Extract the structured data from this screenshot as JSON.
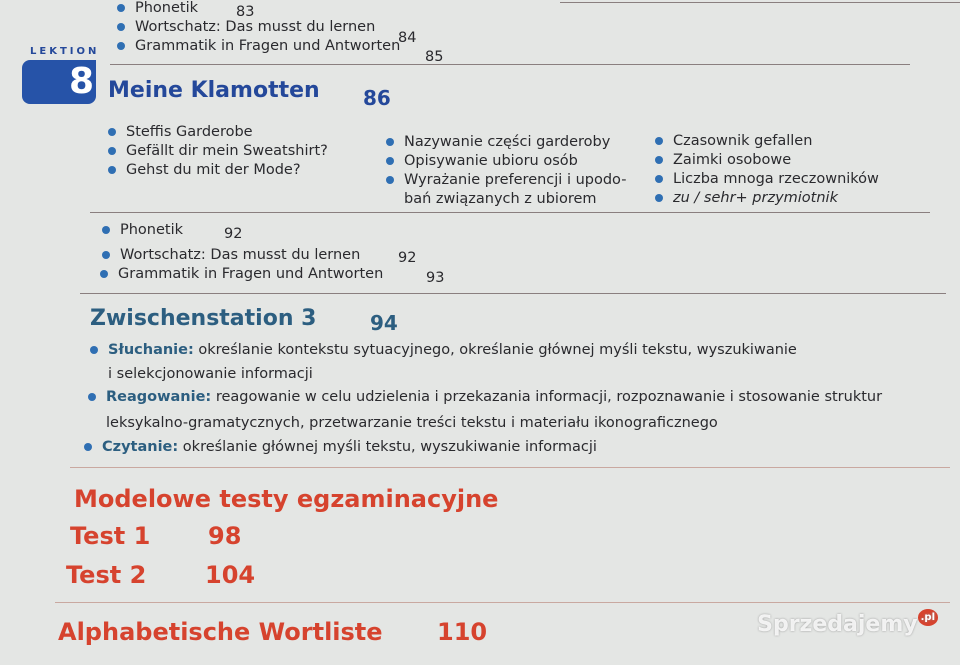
{
  "prev_lesson": {
    "items": [
      {
        "label": "Phonetik",
        "page": "83"
      },
      {
        "label": "Wortschatz: Das musst du lernen",
        "page": "84"
      },
      {
        "label": "Grammatik in Fragen und Antworten",
        "page": "85"
      }
    ]
  },
  "lesson": {
    "prefix": "LEKTION",
    "number": "8",
    "title": "Meine Klamotten",
    "page": "86",
    "col1": [
      "Steffis Garderobe",
      "Gefällt dir mein Sweatshirt?",
      "Gehst du mit der Mode?"
    ],
    "col2": [
      "Nazywanie części garderoby",
      "Opisywanie ubioru osób",
      "Wyrażanie preferencji i upodo-",
      "bań związanych z ubiorem"
    ],
    "col3": [
      "Czasownik gefallen",
      "Zaimki osobowe",
      "Liczba mnoga rzeczowników",
      "zu / sehr+ przymiotnik"
    ],
    "items": [
      {
        "label": "Phonetik",
        "page": "92"
      },
      {
        "label": "Wortschatz: Das musst du lernen",
        "page": "92"
      },
      {
        "label": "Grammatik in Fragen und Antworten",
        "page": "93"
      }
    ]
  },
  "zwischenstation": {
    "title": "Zwischenstation 3",
    "page": "94",
    "sections": [
      {
        "label": "Słuchanie:",
        "text": "określanie kontekstu sytuacyjnego, określanie głównej myśli tekstu, wyszukiwanie",
        "text2": "i selekcjonowanie informacji"
      },
      {
        "label": "Reagowanie:",
        "text": "reagowanie w celu udzielenia i przekazania informacji, rozpoznawanie i stosowanie struktur",
        "text2": "leksykalno-gramatycznych, przetwarzanie treści tekstu i materiału ikonograficznego"
      },
      {
        "label": "Czytanie:",
        "text": "określanie głównej myśli tekstu, wyszukiwanie informacji"
      }
    ]
  },
  "tests": {
    "title": "Modelowe testy egzaminacyjne",
    "items": [
      {
        "label": "Test 1",
        "page": "98"
      },
      {
        "label": "Test 2",
        "page": "104"
      }
    ]
  },
  "wortliste": {
    "title": "Alphabetische Wortliste",
    "page": "110"
  },
  "watermark": {
    "text": "Sprzedajemy",
    "suffix": ".pl"
  },
  "colors": {
    "blue": "#24489a",
    "red": "#d6432e",
    "bullet": "#2f6fb3"
  }
}
